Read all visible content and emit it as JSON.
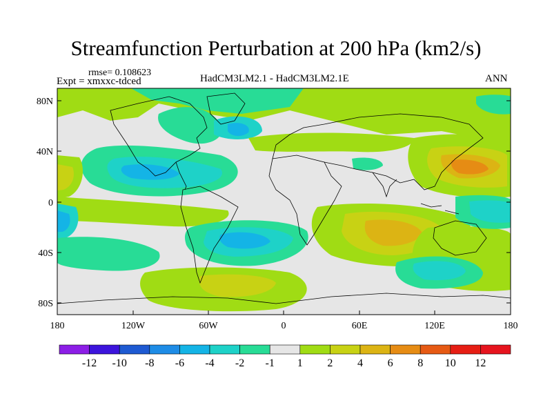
{
  "title": "Streamfunction Perturbation at 200 hPa (km2/s)",
  "rmse_label": "rmse= 0.108623",
  "expt_label": "Expt = xmxxc-tdced",
  "comparison_label": "HadCM3LM2.1 - HadCM3LM2.1E",
  "season_label": "ANN",
  "lat_ticks": [
    "80N",
    "40N",
    "0",
    "40S",
    "80S"
  ],
  "lon_ticks": [
    "180",
    "120W",
    "60W",
    "0",
    "60E",
    "120E",
    "180"
  ],
  "colorbar": {
    "labels": [
      "-12",
      "-10",
      "-8",
      "-6",
      "-4",
      "-2",
      "-1",
      "1",
      "2",
      "4",
      "6",
      "8",
      "10",
      "12"
    ],
    "colors": [
      "#8c1ee6",
      "#3c14dc",
      "#1e5ad2",
      "#1e8ce6",
      "#14b4e6",
      "#1ed2c8",
      "#28dc96",
      "#e6e6e6",
      "#a0dc14",
      "#c8d214",
      "#dcb414",
      "#e68c14",
      "#e65a14",
      "#e61e14",
      "#e6141e"
    ]
  },
  "field_colors": {
    "land_sea_bg": "#e6e6e6",
    "coast": "#000000"
  }
}
